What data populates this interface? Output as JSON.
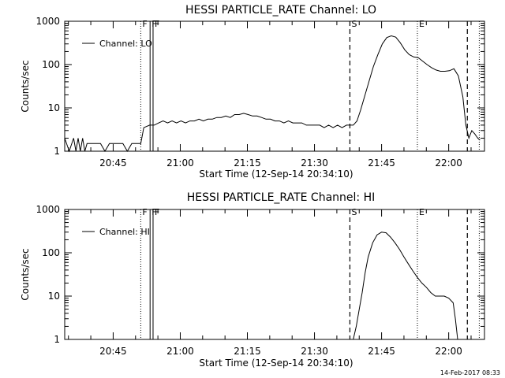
{
  "footer_timestamp": "14-Feb-2017 08:33",
  "chart_data": [
    {
      "type": "line",
      "title": "HESSI PARTICLE_RATE Channel: LO",
      "xlabel": "Start Time (12-Sep-14 20:34:10)",
      "ylabel": "Counts/sec",
      "y_scale": "log",
      "ylim": [
        1,
        1000
      ],
      "xlim": [
        "20:34:10",
        "22:08:00"
      ],
      "x_ticks": [
        "20:45",
        "21:00",
        "21:15",
        "21:30",
        "21:45",
        "22:00"
      ],
      "y_ticks": [
        "1",
        "10",
        "100",
        "1000"
      ],
      "legend": {
        "position": "top-left",
        "entries": [
          "Channel: LO"
        ]
      },
      "grid": false,
      "markers": [
        {
          "label": "F",
          "time": "20:51:10",
          "style": "dotted"
        },
        {
          "label": "F",
          "time": "20:53:15",
          "style": "solid"
        },
        {
          "label": "F",
          "time": "20:53:55",
          "style": "solid"
        },
        {
          "label": "S",
          "time": "21:37:55",
          "style": "dashed"
        },
        {
          "label": "E",
          "time": "21:53:00",
          "style": "dotted"
        },
        {
          "label": "",
          "time": "22:04:10",
          "style": "dashed"
        },
        {
          "label": "",
          "time": "22:06:50",
          "style": "dotted"
        }
      ],
      "series": [
        {
          "x": [
            "20:34:10",
            "20:35:10",
            "20:36:10",
            "20:36:40",
            "20:37:10",
            "20:37:40",
            "20:38:10",
            "20:38:40",
            "20:39:10",
            "20:40:10",
            "20:41:10",
            "20:42:10",
            "20:43:10",
            "20:44:10",
            "20:45:10",
            "20:46:10",
            "20:47:10",
            "20:48:10",
            "20:49:10",
            "20:50:10",
            "20:51:10",
            "20:51:50",
            "20:53:10",
            "20:54:10",
            "20:55:10",
            "20:56:10",
            "20:57:10",
            "20:58:10",
            "20:59:10",
            "21:00:10",
            "21:01:10",
            "21:02:10",
            "21:03:10",
            "21:04:10",
            "21:05:10",
            "21:06:10",
            "21:07:10",
            "21:08:10",
            "21:09:10",
            "21:10:10",
            "21:11:10",
            "21:12:10",
            "21:13:10",
            "21:14:10",
            "21:15:10",
            "21:16:10",
            "21:17:10",
            "21:18:10",
            "21:19:10",
            "21:20:10",
            "21:21:10",
            "21:22:10",
            "21:23:10",
            "21:24:10",
            "21:25:10",
            "21:26:10",
            "21:27:10",
            "21:28:10",
            "21:29:10",
            "21:30:10",
            "21:31:10",
            "21:32:10",
            "21:33:10",
            "21:34:10",
            "21:35:10",
            "21:36:10",
            "21:37:10",
            "21:37:55",
            "21:38:40",
            "21:39:30",
            "21:40:20",
            "21:41:10",
            "21:42:10",
            "21:43:10",
            "21:44:10",
            "21:45:10",
            "21:46:10",
            "21:47:10",
            "21:48:10",
            "21:49:10",
            "21:50:10",
            "21:51:10",
            "21:52:10",
            "21:53:10",
            "21:54:10",
            "21:55:10",
            "21:56:10",
            "21:57:10",
            "21:58:10",
            "21:59:10",
            "22:00:10",
            "22:01:10",
            "22:02:10",
            "22:03:10",
            "22:03:50",
            "22:04:30",
            "22:05:10",
            "22:05:50",
            "22:06:30",
            "22:07:00"
          ],
          "y": [
            2,
            1,
            2,
            1,
            2,
            1,
            2,
            1,
            1.5,
            1.5,
            1.5,
            1.5,
            1,
            1.5,
            1.5,
            1.5,
            1.5,
            1,
            1.5,
            1.5,
            1.5,
            3.5,
            4,
            4,
            4.5,
            5,
            4.5,
            5,
            4.5,
            5,
            4.5,
            5,
            5,
            5.5,
            5,
            5.5,
            5.5,
            6,
            6,
            6.5,
            6,
            7,
            7,
            7.5,
            7,
            6.5,
            6.5,
            6,
            5.5,
            5.5,
            5,
            5,
            4.5,
            5,
            4.5,
            4.5,
            4.5,
            4,
            4,
            4,
            4,
            3.5,
            4,
            3.5,
            4,
            3.5,
            4,
            4,
            4,
            5,
            9,
            18,
            40,
            90,
            170,
            300,
            420,
            460,
            430,
            320,
            220,
            170,
            150,
            145,
            120,
            100,
            85,
            75,
            70,
            70,
            72,
            80,
            55,
            18,
            4,
            2,
            3,
            2.5,
            2,
            1.8
          ]
        }
      ]
    },
    {
      "type": "line",
      "title": "HESSI PARTICLE_RATE Channel: HI",
      "xlabel": "Start Time (12-Sep-14 20:34:10)",
      "ylabel": "Counts/sec",
      "y_scale": "log",
      "ylim": [
        1,
        1000
      ],
      "xlim": [
        "20:34:10",
        "22:08:00"
      ],
      "x_ticks": [
        "20:45",
        "21:00",
        "21:15",
        "21:30",
        "21:45",
        "22:00"
      ],
      "y_ticks": [
        "1",
        "10",
        "100",
        "1000"
      ],
      "legend": {
        "position": "top-left",
        "entries": [
          "Channel: HI"
        ]
      },
      "grid": false,
      "markers": [
        {
          "label": "F",
          "time": "20:51:10",
          "style": "dotted"
        },
        {
          "label": "F",
          "time": "20:53:15",
          "style": "solid"
        },
        {
          "label": "F",
          "time": "20:53:55",
          "style": "solid"
        },
        {
          "label": "S",
          "time": "21:37:55",
          "style": "dashed"
        },
        {
          "label": "E",
          "time": "21:53:00",
          "style": "dotted"
        },
        {
          "label": "",
          "time": "22:04:10",
          "style": "dashed"
        },
        {
          "label": "",
          "time": "22:06:50",
          "style": "dotted"
        }
      ],
      "series": [
        {
          "x": [
            "21:38:40",
            "21:39:20",
            "21:40:00",
            "21:40:40",
            "21:41:20",
            "21:42:00",
            "21:43:00",
            "21:44:00",
            "21:45:00",
            "21:46:00",
            "21:47:00",
            "21:48:00",
            "21:49:00",
            "21:50:00",
            "21:51:00",
            "21:52:00",
            "21:53:00",
            "21:54:00",
            "21:55:00",
            "21:56:00",
            "21:57:00",
            "21:58:00",
            "21:59:00",
            "22:00:00",
            "22:01:00",
            "22:01:30",
            "22:02:00"
          ],
          "y": [
            1,
            2,
            5,
            12,
            35,
            80,
            170,
            260,
            300,
            290,
            230,
            170,
            120,
            80,
            55,
            38,
            27,
            20,
            16,
            12,
            10,
            10,
            10,
            9,
            7,
            3,
            1
          ]
        }
      ]
    }
  ]
}
